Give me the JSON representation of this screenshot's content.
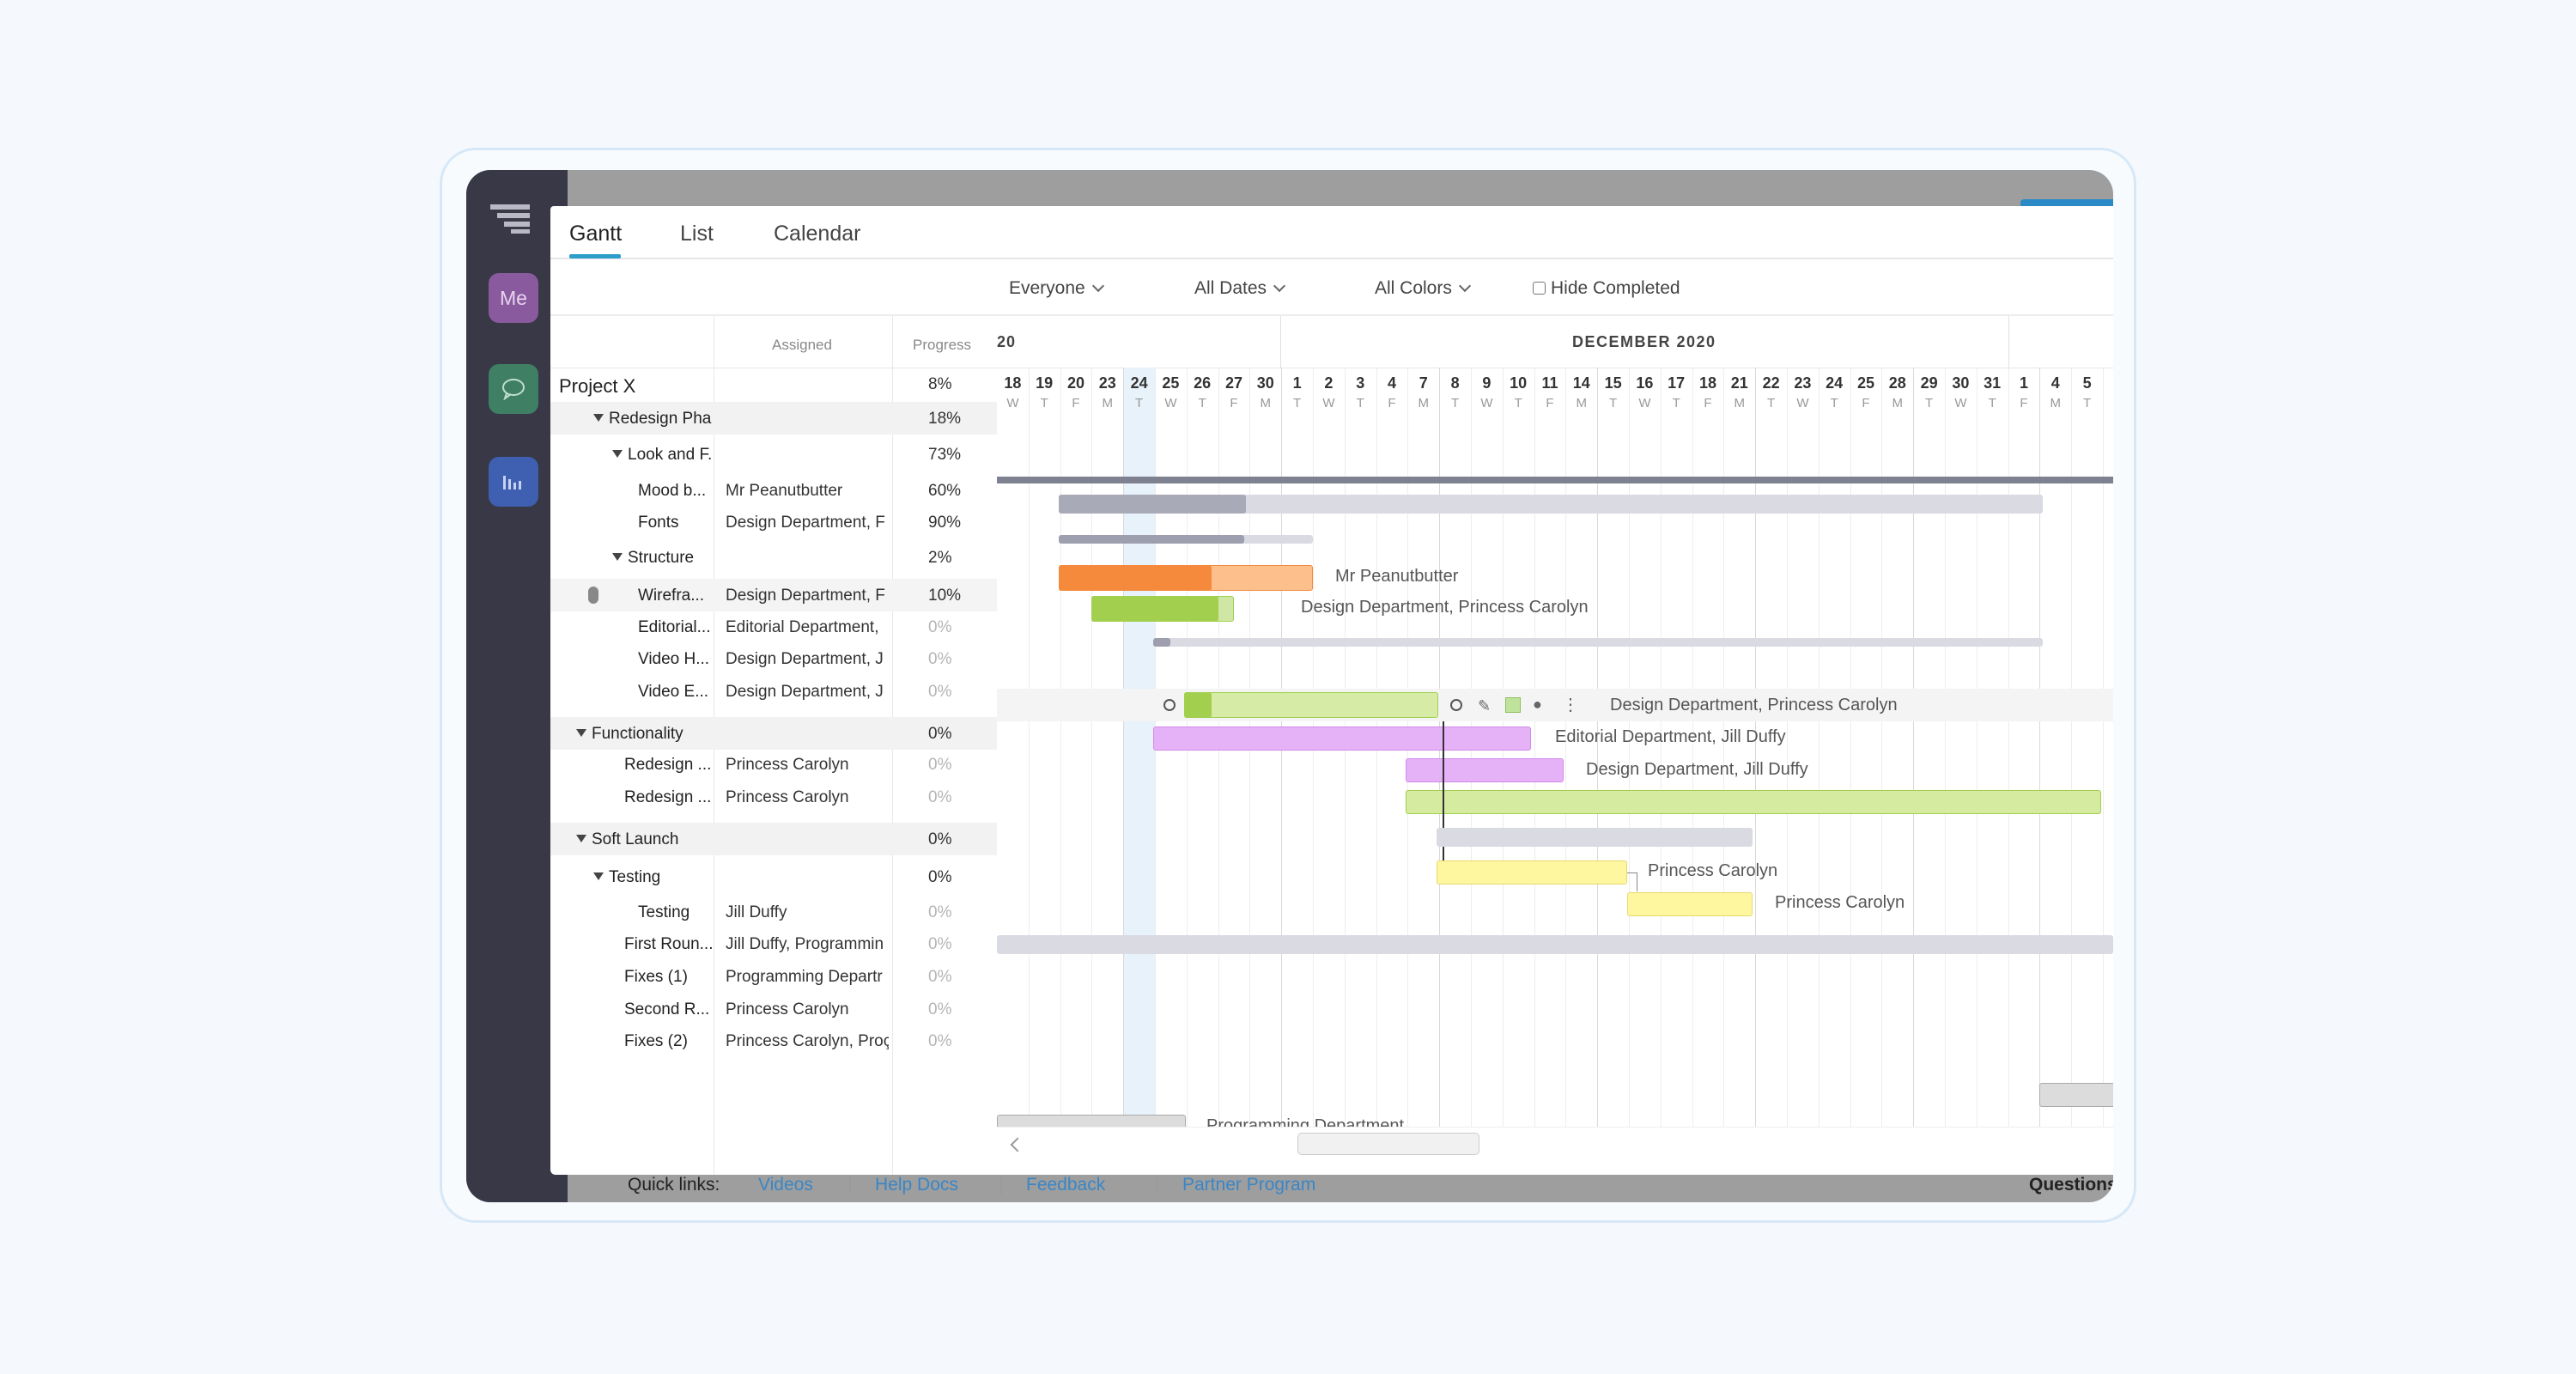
{
  "sidebar": {
    "me_label": "Me"
  },
  "tabs": [
    "Gantt",
    "List",
    "Calendar"
  ],
  "filters": {
    "people": "Everyone",
    "dates": "All Dates",
    "colors": "All Colors",
    "hide_completed": "Hide Completed"
  },
  "columns": {
    "assigned": "Assigned",
    "progress": "Progress"
  },
  "timeline": {
    "year_fragment": "20",
    "month_label": "DECEMBER 2020",
    "days": [
      {
        "d": "18",
        "w": "W"
      },
      {
        "d": "19",
        "w": "T"
      },
      {
        "d": "20",
        "w": "F"
      },
      {
        "d": "23",
        "w": "M"
      },
      {
        "d": "24",
        "w": "T"
      },
      {
        "d": "25",
        "w": "W"
      },
      {
        "d": "26",
        "w": "T"
      },
      {
        "d": "27",
        "w": "F"
      },
      {
        "d": "30",
        "w": "M"
      },
      {
        "d": "1",
        "w": "T"
      },
      {
        "d": "2",
        "w": "W"
      },
      {
        "d": "3",
        "w": "T"
      },
      {
        "d": "4",
        "w": "F"
      },
      {
        "d": "7",
        "w": "M"
      },
      {
        "d": "8",
        "w": "T"
      },
      {
        "d": "9",
        "w": "W"
      },
      {
        "d": "10",
        "w": "T"
      },
      {
        "d": "11",
        "w": "F"
      },
      {
        "d": "14",
        "w": "M"
      },
      {
        "d": "15",
        "w": "T"
      },
      {
        "d": "16",
        "w": "W"
      },
      {
        "d": "17",
        "w": "T"
      },
      {
        "d": "18",
        "w": "F"
      },
      {
        "d": "21",
        "w": "M"
      },
      {
        "d": "22",
        "w": "T"
      },
      {
        "d": "23",
        "w": "W"
      },
      {
        "d": "24",
        "w": "T"
      },
      {
        "d": "25",
        "w": "F"
      },
      {
        "d": "28",
        "w": "M"
      },
      {
        "d": "29",
        "w": "T"
      },
      {
        "d": "30",
        "w": "W"
      },
      {
        "d": "31",
        "w": "T"
      },
      {
        "d": "1",
        "w": "F"
      },
      {
        "d": "4",
        "w": "M"
      },
      {
        "d": "5",
        "w": "T"
      }
    ]
  },
  "rows": [
    {
      "name": "Project X",
      "assigned": "",
      "progress": "8%"
    },
    {
      "name": "Redesign Pha...",
      "assigned": "",
      "progress": "18%"
    },
    {
      "name": "Look and F...",
      "assigned": "",
      "progress": "73%"
    },
    {
      "name": "Mood b...",
      "assigned": "Mr Peanutbutter",
      "progress": "60%"
    },
    {
      "name": "Fonts",
      "assigned": "Design Department, F",
      "progress": "90%"
    },
    {
      "name": "Structure",
      "assigned": "",
      "progress": "2%"
    },
    {
      "name": "Wirefra...",
      "assigned": "Design Department, F",
      "progress": "10%"
    },
    {
      "name": "Editorial...",
      "assigned": "Editorial Department,",
      "progress": "0%"
    },
    {
      "name": "Video H...",
      "assigned": "Design Department, J",
      "progress": "0%"
    },
    {
      "name": "Video E...",
      "assigned": "Design Department, J",
      "progress": "0%"
    },
    {
      "name": "Functionality",
      "assigned": "",
      "progress": "0%"
    },
    {
      "name": "Redesign ...",
      "assigned": "Princess Carolyn",
      "progress": "0%"
    },
    {
      "name": "Redesign ...",
      "assigned": "Princess Carolyn",
      "progress": "0%"
    },
    {
      "name": "Soft Launch",
      "assigned": "",
      "progress": "0%"
    },
    {
      "name": "Testing",
      "assigned": "",
      "progress": "0%"
    },
    {
      "name": "Testing",
      "assigned": "Jill Duffy",
      "progress": "0%"
    },
    {
      "name": "First Roun...",
      "assigned": "Jill Duffy, Programmin",
      "progress": "0%"
    },
    {
      "name": "Fixes (1)",
      "assigned": "Programming Departr",
      "progress": "0%"
    },
    {
      "name": "Second R...",
      "assigned": "Princess Carolyn",
      "progress": "0%"
    },
    {
      "name": "Fixes (2)",
      "assigned": "Princess Carolyn, Proç",
      "progress": "0%"
    }
  ],
  "bar_labels": {
    "mood": "Mr Peanutbutter",
    "fonts": "Design Department, Princess Carolyn",
    "wireframe": "Design Department, Princess Carolyn",
    "editorial": "Editorial Department, Jill Duffy",
    "video_h": "Design Department, Jill Duffy",
    "func1": "Princess Carolyn",
    "func2": "Princess Carolyn",
    "fixes1": "Programming Department"
  },
  "quick_links": {
    "label": "Quick links:",
    "links": [
      "Videos",
      "Help Docs",
      "Feedback",
      "Partner Program"
    ],
    "questions": "Questions"
  },
  "colors": {
    "accent": "#2c9ec9",
    "orange": "#f58a3c",
    "green": "#a3cf4f",
    "purple": "#e5b2f7",
    "yellow": "#fff6a0",
    "gray": "#d8d8e0"
  }
}
